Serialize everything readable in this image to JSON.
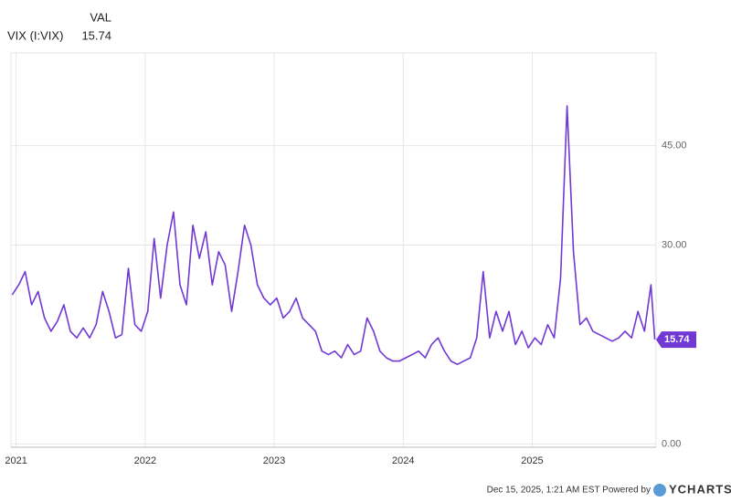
{
  "chart_data": {
    "type": "line",
    "column_header": "VAL",
    "footer": "Dec 15, 2025, 1:21 AM EST Powered by",
    "brand": "YCHARTS",
    "x": [
      2020.97,
      2021.02,
      2021.07,
      2021.12,
      2021.17,
      2021.22,
      2021.27,
      2021.32,
      2021.37,
      2021.42,
      2021.47,
      2021.52,
      2021.57,
      2021.62,
      2021.67,
      2021.72,
      2021.77,
      2021.82,
      2021.87,
      2021.92,
      2021.97,
      2022.02,
      2022.07,
      2022.12,
      2022.17,
      2022.22,
      2022.27,
      2022.32,
      2022.37,
      2022.42,
      2022.47,
      2022.52,
      2022.57,
      2022.62,
      2022.67,
      2022.72,
      2022.77,
      2022.82,
      2022.87,
      2022.92,
      2022.97,
      2023.02,
      2023.07,
      2023.12,
      2023.17,
      2023.22,
      2023.27,
      2023.32,
      2023.37,
      2023.42,
      2023.47,
      2023.52,
      2023.57,
      2023.62,
      2023.67,
      2023.72,
      2023.77,
      2023.82,
      2023.87,
      2023.92,
      2023.97,
      2024.02,
      2024.07,
      2024.12,
      2024.17,
      2024.22,
      2024.27,
      2024.32,
      2024.37,
      2024.42,
      2024.47,
      2024.52,
      2024.57,
      2024.62,
      2024.67,
      2024.72,
      2024.77,
      2024.82,
      2024.87,
      2024.92,
      2024.97,
      2025.02,
      2025.07,
      2025.12,
      2025.17,
      2025.22,
      2025.27,
      2025.32,
      2025.37,
      2025.42,
      2025.47,
      2025.52,
      2025.57,
      2025.62,
      2025.67,
      2025.72,
      2025.77,
      2025.82,
      2025.87,
      2025.92,
      2025.95
    ],
    "series": [
      {
        "name": "VIX (I:VIX)",
        "color": "#7138d4",
        "values": [
          22.5,
          24,
          26,
          21,
          23,
          19,
          17,
          18.5,
          21,
          17,
          16,
          17.5,
          16,
          18,
          23,
          20,
          16,
          16.5,
          26.5,
          18,
          17,
          20,
          31,
          22,
          30,
          35,
          24,
          21,
          33,
          28,
          32,
          24,
          29,
          27,
          20,
          26,
          33,
          30,
          24,
          22,
          21,
          22,
          19,
          20,
          22,
          19,
          18,
          17,
          14,
          13.5,
          14,
          13,
          15,
          13.5,
          14,
          19,
          17,
          14,
          13,
          12.5,
          12.5,
          13,
          13.5,
          14,
          13,
          15,
          16,
          14,
          12.5,
          12,
          12.5,
          13,
          16,
          26,
          16,
          20,
          17,
          20,
          15,
          17,
          14.5,
          16,
          15,
          18,
          16,
          25,
          51,
          29,
          18,
          19,
          17,
          16.5,
          16,
          15.5,
          16,
          17,
          16,
          20,
          17,
          24,
          15.74
        ]
      }
    ],
    "xlim": [
      2020.96,
      2025.96
    ],
    "xticks": [
      2021,
      2022,
      2023,
      2024,
      2025
    ],
    "ylim": [
      -0.5,
      59
    ],
    "yticks": [
      {
        "value": 0,
        "label": "0.00"
      },
      {
        "value": 30,
        "label": "30.00"
      },
      {
        "value": 45,
        "label": "45.00"
      }
    ],
    "grid": true
  }
}
